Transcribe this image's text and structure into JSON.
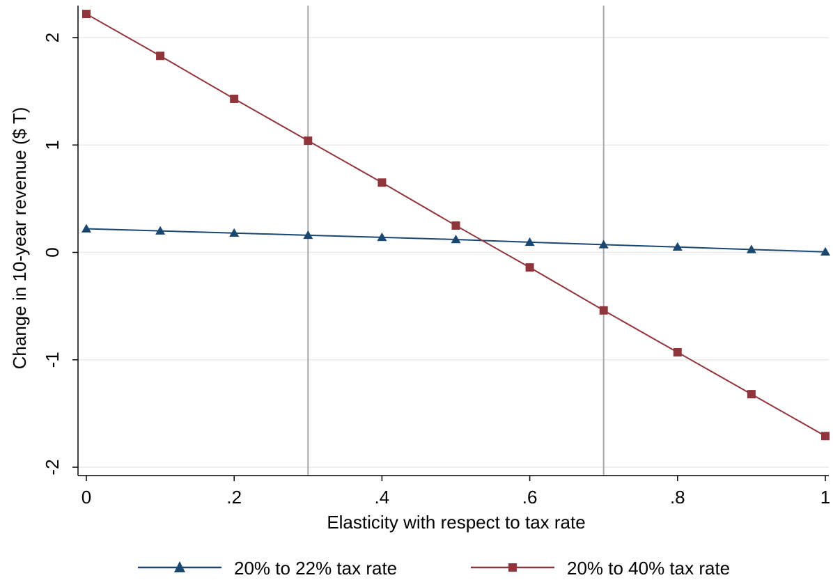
{
  "chart_data": {
    "type": "line",
    "title": "",
    "xlabel": "Elasticity with respect to tax rate",
    "ylabel": "Change in 10-year revenue ($ T)",
    "xlim": [
      0,
      1
    ],
    "ylim": [
      -2.1,
      2.3
    ],
    "x_ticks": [
      0,
      0.2,
      0.4,
      0.6,
      0.8,
      1
    ],
    "x_tick_labels": [
      "0",
      ".2",
      ".4",
      ".6",
      ".8",
      "1"
    ],
    "y_ticks": [
      -2,
      -1,
      0,
      1,
      2
    ],
    "y_tick_labels": [
      "-2",
      "-1",
      "0",
      "1",
      "2"
    ],
    "grid": "horizontal",
    "reference_lines_x": [
      0.3,
      0.7
    ],
    "legend_position": "bottom",
    "x": [
      0,
      0.1,
      0.2,
      0.3,
      0.4,
      0.5,
      0.6,
      0.7,
      0.8,
      0.9,
      1.0
    ],
    "series": [
      {
        "name": "20% to 22% tax rate",
        "color": "#1a476f",
        "marker": "triangle",
        "values": [
          0.22,
          0.2,
          0.18,
          0.16,
          0.14,
          0.12,
          0.095,
          0.072,
          0.05,
          0.027,
          0.005
        ]
      },
      {
        "name": "20% to 40% tax rate",
        "color": "#90353b",
        "marker": "square",
        "values": [
          2.22,
          1.83,
          1.43,
          1.04,
          0.65,
          0.25,
          -0.14,
          -0.54,
          -0.93,
          -1.32,
          -1.71
        ]
      }
    ]
  }
}
